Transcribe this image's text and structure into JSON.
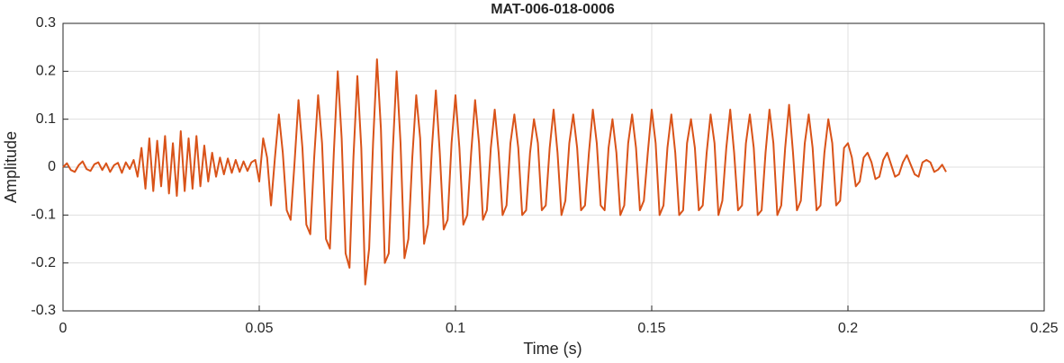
{
  "chart_data": {
    "type": "line",
    "title": "MAT-006-018-0006",
    "xlabel": "Time (s)",
    "ylabel": "Amplitude",
    "xlim": [
      0,
      0.25
    ],
    "xticks": [
      0,
      0.05,
      0.1,
      0.15,
      0.2,
      0.25
    ],
    "ylim": [
      -0.3,
      0.3
    ],
    "yticks": [
      0.3,
      0.2,
      0.1,
      0,
      -0.1,
      -0.2,
      -0.3
    ],
    "grid": true,
    "series": [
      {
        "color": "#d95319",
        "x": [
          0,
          0.001,
          0.002,
          0.003,
          0.004,
          0.005,
          0.006,
          0.007,
          0.008,
          0.009,
          0.01,
          0.011,
          0.012,
          0.013,
          0.014,
          0.015,
          0.016,
          0.017,
          0.018,
          0.019,
          0.02,
          0.021,
          0.022,
          0.023,
          0.024,
          0.025,
          0.026,
          0.027,
          0.028,
          0.029,
          0.03,
          0.031,
          0.032,
          0.033,
          0.034,
          0.035,
          0.036,
          0.037,
          0.038,
          0.039,
          0.04,
          0.041,
          0.042,
          0.043,
          0.044,
          0.045,
          0.046,
          0.047,
          0.048,
          0.049,
          0.05,
          0.051,
          0.052,
          0.053,
          0.054,
          0.055,
          0.056,
          0.057,
          0.058,
          0.059,
          0.06,
          0.061,
          0.062,
          0.063,
          0.064,
          0.065,
          0.066,
          0.067,
          0.068,
          0.069,
          0.07,
          0.071,
          0.072,
          0.073,
          0.074,
          0.075,
          0.076,
          0.077,
          0.078,
          0.079,
          0.08,
          0.081,
          0.082,
          0.083,
          0.084,
          0.085,
          0.086,
          0.087,
          0.088,
          0.089,
          0.09,
          0.091,
          0.092,
          0.093,
          0.094,
          0.095,
          0.096,
          0.097,
          0.098,
          0.099,
          0.1,
          0.101,
          0.102,
          0.103,
          0.104,
          0.105,
          0.106,
          0.107,
          0.108,
          0.109,
          0.11,
          0.111,
          0.112,
          0.113,
          0.114,
          0.115,
          0.116,
          0.117,
          0.118,
          0.119,
          0.12,
          0.121,
          0.122,
          0.123,
          0.124,
          0.125,
          0.126,
          0.127,
          0.128,
          0.129,
          0.13,
          0.131,
          0.132,
          0.133,
          0.134,
          0.135,
          0.136,
          0.137,
          0.138,
          0.139,
          0.14,
          0.141,
          0.142,
          0.143,
          0.144,
          0.145,
          0.146,
          0.147,
          0.148,
          0.149,
          0.15,
          0.151,
          0.152,
          0.153,
          0.154,
          0.155,
          0.156,
          0.157,
          0.158,
          0.159,
          0.16,
          0.161,
          0.162,
          0.163,
          0.164,
          0.165,
          0.166,
          0.167,
          0.168,
          0.169,
          0.17,
          0.171,
          0.172,
          0.173,
          0.174,
          0.175,
          0.176,
          0.177,
          0.178,
          0.179,
          0.18,
          0.181,
          0.182,
          0.183,
          0.184,
          0.185,
          0.186,
          0.187,
          0.188,
          0.189,
          0.19,
          0.191,
          0.192,
          0.193,
          0.194,
          0.195,
          0.196,
          0.197,
          0.198,
          0.199,
          0.2,
          0.201,
          0.202,
          0.203,
          0.204,
          0.205,
          0.206,
          0.207,
          0.208,
          0.209,
          0.21,
          0.211,
          0.212,
          0.213,
          0.214,
          0.215,
          0.216,
          0.217,
          0.218,
          0.219,
          0.22,
          0.221,
          0.222,
          0.223,
          0.224,
          0.225
        ],
        "values": [
          0,
          0.008,
          -0.006,
          -0.01,
          0.004,
          0.012,
          -0.004,
          -0.008,
          0.006,
          0.01,
          -0.006,
          0.008,
          -0.01,
          0.004,
          0.009,
          -0.012,
          0.01,
          -0.004,
          0.015,
          -0.02,
          0.04,
          -0.045,
          0.06,
          -0.05,
          0.055,
          -0.04,
          0.065,
          -0.055,
          0.05,
          -0.06,
          0.075,
          -0.05,
          0.06,
          -0.045,
          0.065,
          -0.04,
          0.045,
          -0.03,
          0.03,
          -0.02,
          0.02,
          -0.015,
          0.018,
          -0.012,
          0.015,
          -0.01,
          0.012,
          -0.008,
          0.01,
          0.015,
          -0.03,
          0.06,
          0.02,
          -0.08,
          0.02,
          0.11,
          0.03,
          -0.09,
          -0.11,
          0.01,
          0.14,
          0.04,
          -0.12,
          -0.14,
          0.02,
          0.15,
          0.05,
          -0.15,
          -0.17,
          0.03,
          0.2,
          0.06,
          -0.18,
          -0.21,
          0.02,
          0.19,
          0.04,
          -0.245,
          -0.17,
          0.05,
          0.225,
          0.08,
          -0.2,
          -0.18,
          0.03,
          0.2,
          0.05,
          -0.19,
          -0.15,
          0.02,
          0.15,
          0.06,
          -0.16,
          -0.12,
          0.04,
          0.16,
          0.03,
          -0.13,
          -0.11,
          0.05,
          0.15,
          0.04,
          -0.12,
          -0.1,
          0.03,
          0.14,
          0.05,
          -0.11,
          -0.09,
          0.04,
          0.12,
          0.03,
          -0.1,
          -0.08,
          0.05,
          0.11,
          0.04,
          -0.1,
          -0.09,
          0.03,
          0.1,
          0.05,
          -0.09,
          -0.08,
          0.04,
          0.12,
          0.03,
          -0.1,
          -0.07,
          0.05,
          0.11,
          0.04,
          -0.09,
          -0.08,
          0.03,
          0.12,
          0.05,
          -0.08,
          -0.09,
          0.04,
          0.1,
          0.03,
          -0.1,
          -0.08,
          0.05,
          0.11,
          0.04,
          -0.09,
          -0.07,
          0.03,
          0.12,
          0.05,
          -0.1,
          -0.08,
          0.04,
          0.11,
          0.03,
          -0.1,
          -0.09,
          0.05,
          0.1,
          0.04,
          -0.09,
          -0.08,
          0.03,
          0.11,
          0.05,
          -0.1,
          -0.07,
          0.04,
          0.12,
          0.03,
          -0.09,
          -0.08,
          0.05,
          0.11,
          0.04,
          -0.1,
          -0.09,
          0.03,
          0.12,
          0.05,
          -0.1,
          -0.08,
          0.04,
          0.13,
          0.03,
          -0.09,
          -0.07,
          0.05,
          0.11,
          0.04,
          -0.09,
          -0.08,
          0.03,
          0.1,
          0.05,
          -0.08,
          -0.07,
          0.04,
          0.05,
          0.02,
          -0.04,
          -0.03,
          0.02,
          0.03,
          0.01,
          -0.025,
          -0.02,
          0.015,
          0.03,
          0.005,
          -0.02,
          -0.015,
          0.01,
          0.025,
          0.005,
          -0.015,
          -0.02,
          0.01,
          0.015,
          0.01,
          -0.01,
          -0.005,
          0.005,
          -0.01
        ]
      }
    ]
  }
}
